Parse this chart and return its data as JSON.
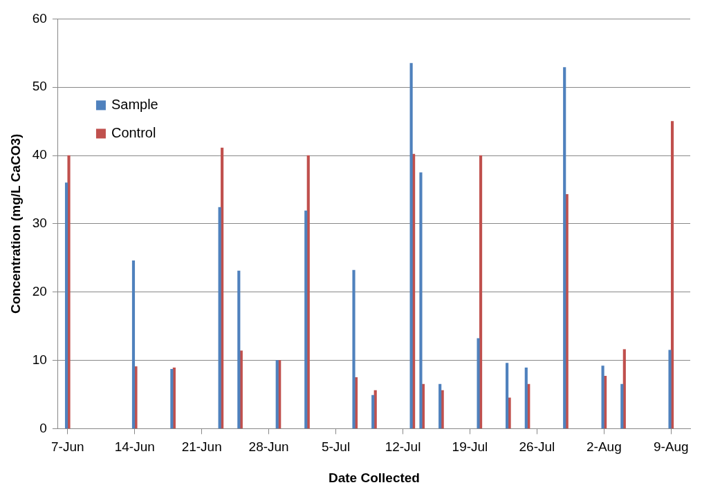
{
  "chart_data": {
    "type": "bar",
    "xlabel": "Date Collected",
    "ylabel": "Concentration (mg/L CaCO3)",
    "x": [
      "--06-07",
      "--06-14",
      "--06-18",
      "--06-23",
      "--06-25",
      "--06-29",
      "--07-02",
      "--07-07",
      "--07-09",
      "--07-13",
      "--07-14",
      "--07-16",
      "--07-20",
      "--07-23",
      "--07-25",
      "--07-29",
      "--08-02",
      "--08-04",
      "--08-09"
    ],
    "series": [
      {
        "name": "Sample",
        "color": "#4f81bd",
        "values": [
          36,
          24.6,
          8.7,
          32.4,
          23.1,
          10,
          31.9,
          23.2,
          4.9,
          53.5,
          37.5,
          6.5,
          13.2,
          9.6,
          8.9,
          52.9,
          9.2,
          6.5,
          11.5
        ]
      },
      {
        "name": "Control",
        "color": "#c0504d",
        "values": [
          40,
          9.1,
          8.9,
          41.1,
          11.4,
          10,
          40,
          7.5,
          5.6,
          40.2,
          6.5,
          5.6,
          40,
          4.5,
          6.5,
          34.3,
          7.7,
          11.6,
          45
        ]
      }
    ],
    "xlim": [
      "--06-06",
      "--08-11"
    ],
    "xticks": [
      {
        "value": "--06-07",
        "label": "7-Jun"
      },
      {
        "value": "--06-14",
        "label": "14-Jun"
      },
      {
        "value": "--06-21",
        "label": "21-Jun"
      },
      {
        "value": "--06-28",
        "label": "28-Jun"
      },
      {
        "value": "--07-05",
        "label": "5-Jul"
      },
      {
        "value": "--07-12",
        "label": "12-Jul"
      },
      {
        "value": "--07-19",
        "label": "19-Jul"
      },
      {
        "value": "--07-26",
        "label": "26-Jul"
      },
      {
        "value": "--08-02",
        "label": "2-Aug"
      },
      {
        "value": "--08-09",
        "label": "9-Aug"
      }
    ],
    "ylim": [
      0,
      60
    ],
    "yticks": [
      0,
      10,
      20,
      30,
      40,
      50,
      60
    ],
    "grid": "y",
    "legend": "top left"
  }
}
